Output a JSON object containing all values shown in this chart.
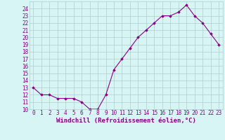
{
  "x": [
    0,
    1,
    2,
    3,
    4,
    5,
    6,
    7,
    8,
    9,
    10,
    11,
    12,
    13,
    14,
    15,
    16,
    17,
    18,
    19,
    20,
    21,
    22,
    23
  ],
  "y": [
    13,
    12,
    12,
    11.5,
    11.5,
    11.5,
    11,
    10,
    10,
    12,
    15.5,
    17,
    18.5,
    20,
    21,
    22,
    23,
    23,
    23.5,
    24.5,
    23,
    22,
    20.5,
    19
  ],
  "line_color": "#880088",
  "marker": "D",
  "marker_size": 1.8,
  "bg_color": "#d8f5f5",
  "grid_color": "#b0cece",
  "xlabel": "Windchill (Refroidissement éolien,°C)",
  "xlabel_color": "#880088",
  "ylim": [
    10,
    25
  ],
  "xlim": [
    -0.5,
    23.5
  ],
  "yticks": [
    10,
    11,
    12,
    13,
    14,
    15,
    16,
    17,
    18,
    19,
    20,
    21,
    22,
    23,
    24
  ],
  "xticks": [
    0,
    1,
    2,
    3,
    4,
    5,
    6,
    7,
    8,
    9,
    10,
    11,
    12,
    13,
    14,
    15,
    16,
    17,
    18,
    19,
    20,
    21,
    22,
    23
  ],
  "tick_fontsize": 5.5,
  "xlabel_fontsize": 6.5,
  "line_width": 0.8
}
